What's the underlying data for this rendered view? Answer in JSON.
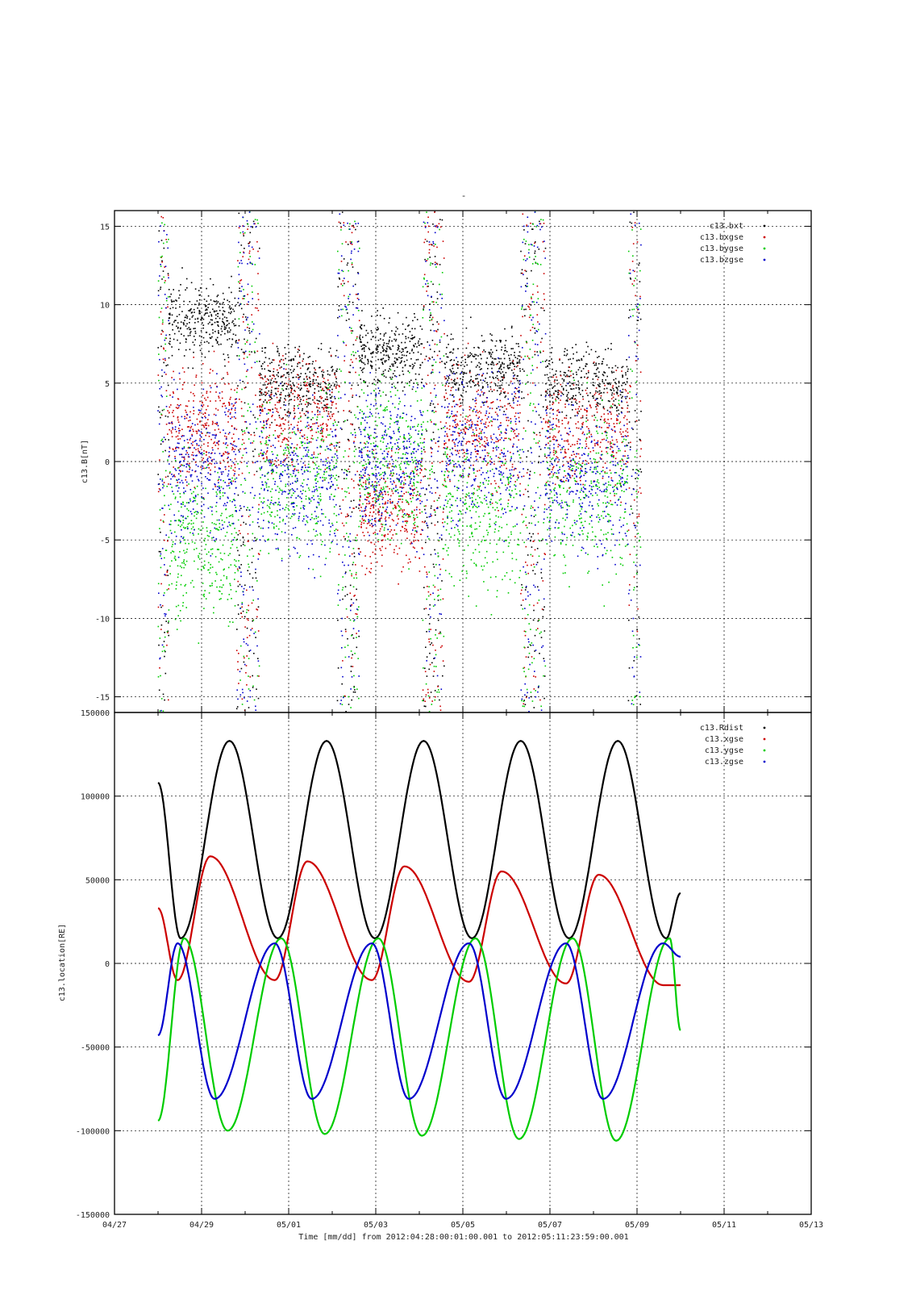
{
  "figure": {
    "top_title": "-",
    "xlabel": "Time [mm/dd]  from 2012:04:28:00:01:00.001  to  2012:05:11:23:59:00.001",
    "x_ticks": [
      "04/27",
      "04/29",
      "05/01",
      "05/03",
      "05/05",
      "05/07",
      "05/09",
      "05/11",
      "05/13"
    ]
  },
  "chart_data": [
    {
      "type": "scatter",
      "ylabel": "c13.B[nT]",
      "ylim": [
        -16,
        16
      ],
      "y_ticks": [
        15,
        10,
        5,
        0,
        -5,
        -10,
        -15
      ],
      "y_tick_labels": [
        "15",
        "10",
        "5",
        "0",
        "-5",
        "-10",
        "-15"
      ],
      "xlim": [
        -1,
        15
      ],
      "x_unit": "days since 04/28",
      "grid": true,
      "legend_position": "top-right",
      "series": [
        {
          "name": "c13.bxt",
          "color": "#000000"
        },
        {
          "name": "c13.bxgse",
          "color": "#cc0000"
        },
        {
          "name": "c13.bygse",
          "color": "#00cc00"
        },
        {
          "name": "c13.bzgse",
          "color": "#0000cc"
        }
      ],
      "segments": [
        {
          "x_start": 0.0,
          "x_end": 2.05,
          "bt": 9,
          "bx": 2,
          "by": -5,
          "bz": 0
        },
        {
          "x_start": 2.05,
          "x_end": 4.4,
          "bt": 5,
          "bx": 3,
          "by": -1,
          "bz": -1
        },
        {
          "x_start": 4.4,
          "x_end": 6.3,
          "bt": 7,
          "bx": -3,
          "by": 0,
          "bz": 0
        },
        {
          "x_start": 6.3,
          "x_end": 8.6,
          "bt": 6,
          "bx": 2,
          "by": -3,
          "bz": 1
        },
        {
          "x_start": 8.6,
          "x_end": 11.1,
          "bt": 5,
          "bx": 2,
          "by": -2,
          "bz": -1
        }
      ]
    },
    {
      "type": "line",
      "ylabel": "c13.location[RE]",
      "ylim": [
        -150000,
        150000
      ],
      "y_ticks": [
        150000,
        100000,
        50000,
        0,
        -50000,
        -100000,
        -150000
      ],
      "y_tick_labels": [
        "150000",
        "100000",
        "50000",
        "0",
        "-50000",
        "-100000",
        "-150000"
      ],
      "xlim": [
        -1,
        15
      ],
      "x_unit": "days since 04/28",
      "grid": true,
      "legend_position": "top-right",
      "orbit_period_days": 2.23,
      "perigee_days": [
        0.52,
        2.75,
        4.98,
        7.21,
        9.44,
        11.67
      ],
      "series": [
        {
          "name": "c13.Rdist",
          "color": "#000000",
          "x": [
            0.0,
            0.52,
            1.64,
            2.75,
            3.87,
            4.98,
            6.1,
            7.21,
            8.33,
            9.44,
            10.56,
            11.67,
            12.0
          ],
          "y": [
            108000,
            15000,
            133000,
            15000,
            133000,
            15000,
            133000,
            15000,
            133000,
            15000,
            133000,
            15000,
            42000
          ]
        },
        {
          "name": "c13.xgse",
          "color": "#cc0000",
          "x": [
            0.0,
            0.45,
            1.2,
            2.68,
            3.43,
            4.91,
            5.66,
            7.14,
            7.89,
            9.37,
            10.12,
            11.6,
            12.0
          ],
          "y": [
            33000,
            -10000,
            64000,
            -10000,
            61000,
            -10000,
            58000,
            -11000,
            55000,
            -12000,
            53000,
            -13000,
            -13000
          ]
        },
        {
          "name": "c13.ygse",
          "color": "#00cc00",
          "x": [
            0.0,
            0.6,
            1.6,
            2.83,
            3.83,
            5.06,
            6.06,
            7.29,
            8.29,
            9.52,
            10.52,
            11.75,
            12.0
          ],
          "y": [
            -94000,
            15000,
            -100000,
            15000,
            -102000,
            15000,
            -103000,
            15000,
            -105000,
            15000,
            -106000,
            15000,
            -40000
          ]
        },
        {
          "name": "c13.zgse",
          "color": "#0000cc",
          "x": [
            0.0,
            0.45,
            1.3,
            2.68,
            3.53,
            4.91,
            5.76,
            7.14,
            7.99,
            9.37,
            10.22,
            11.6,
            12.0
          ],
          "y": [
            -43000,
            12000,
            -81000,
            12000,
            -81000,
            12000,
            -81000,
            12000,
            -81000,
            12000,
            -81000,
            12000,
            4000
          ]
        }
      ]
    }
  ]
}
